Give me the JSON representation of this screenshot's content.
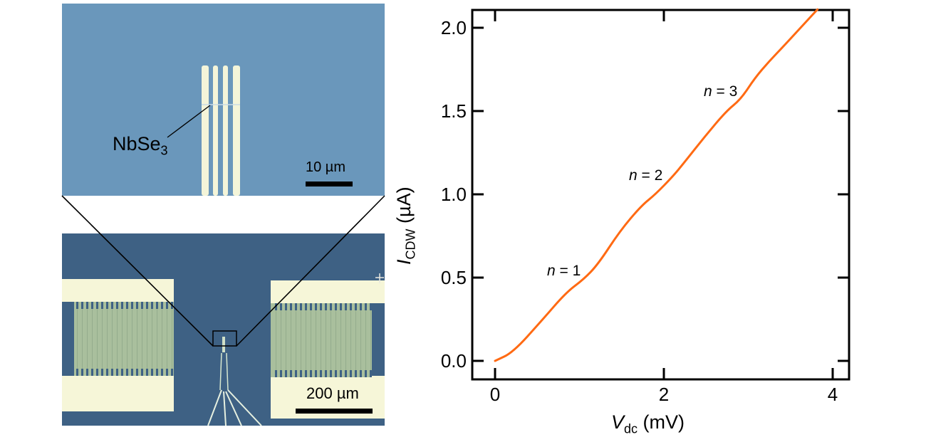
{
  "figure": {
    "top_image": {
      "label": "NbSe",
      "label_sub": "3",
      "scalebar": "10 µm",
      "substrate_color": "#6a97bb",
      "electrode_color": "#f4f5d9"
    },
    "bottom_image": {
      "scalebar": "200 µm",
      "substrate_color": "#3e6184",
      "pad_color": "#f6f6d8",
      "comb_color": "#a9bf9d"
    }
  },
  "chart_data": {
    "type": "line",
    "title": "",
    "xlabel": "V_dc (mV)",
    "xlabel_main": "V",
    "xlabel_sub": "dc",
    "xlabel_unit": " (mV)",
    "ylabel": "I_CDW (µA)",
    "ylabel_main": "I",
    "ylabel_sub": "CDW",
    "ylabel_unit": " (µA)",
    "xlim": [
      -0.27,
      4.2
    ],
    "ylim": [
      -0.11,
      2.11
    ],
    "xticks": [
      0,
      2,
      4
    ],
    "xtick_labels": [
      "0",
      "2",
      "4"
    ],
    "yticks": [
      0.0,
      0.5,
      1.0,
      1.5,
      2.0
    ],
    "ytick_labels": [
      "0.0",
      "0.5",
      "1.0",
      "1.5",
      "2.0"
    ],
    "grid": false,
    "line_color": "#ff6a13",
    "series": [
      {
        "name": "I_CDW",
        "x": [
          0.0,
          0.21,
          0.55,
          0.84,
          1.05,
          1.22,
          1.48,
          1.73,
          1.9,
          2.11,
          2.24,
          2.49,
          2.74,
          2.91,
          3.08,
          3.25,
          3.42,
          3.71,
          3.82
        ],
        "y": [
          0.0,
          0.05,
          0.24,
          0.41,
          0.49,
          0.58,
          0.78,
          0.93,
          1.0,
          1.11,
          1.19,
          1.35,
          1.5,
          1.57,
          1.7,
          1.8,
          1.89,
          2.05,
          2.11
        ]
      }
    ],
    "annotations": [
      {
        "text_italic": "n",
        "text": " = 1",
        "x": 1.05,
        "y": 0.49
      },
      {
        "text_italic": "n",
        "text": " = 2",
        "x": 2.11,
        "y": 1.11
      },
      {
        "text_italic": "n",
        "text": " = 3",
        "x": 3.08,
        "y": 1.6
      }
    ]
  }
}
